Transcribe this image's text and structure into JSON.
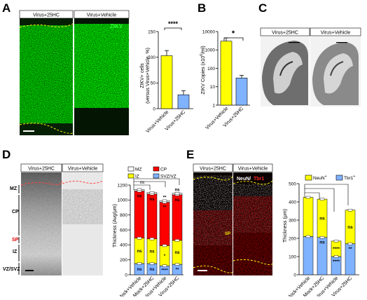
{
  "panels": {
    "A": {
      "letter": "A",
      "image_left_label": "Virus+25HC",
      "image_right_label": "Virus+Vehicle",
      "stain_label": "ZIKV",
      "chart_title_lines": [
        "ZIKV+ cells",
        "(versus Virus+Vehicle, %)"
      ],
      "significance": "****"
    },
    "B": {
      "letter": "B",
      "significance": "*"
    },
    "C": {
      "letter": "C",
      "image_left_label": "Virus+25HC",
      "image_right_label": "Virus+Vehicle"
    },
    "D": {
      "letter": "D",
      "image_left_label": "Virus+25HC",
      "image_right_label": "Virus+Vehicle",
      "layer_labels": [
        "MZ",
        "CP",
        "SP",
        "IZ",
        "VZ/SVZ"
      ],
      "bar_labels": [
        {
          "cp": "ns",
          "iz": "ns",
          "svz": "ns"
        },
        {
          "cp": "ns",
          "iz": "ns",
          "svz": "ns"
        },
        {
          "top": "**",
          "cp": "**",
          "iz": "*",
          "svz": "****"
        },
        {
          "top": "ns",
          "cp": "ns",
          "iz": "ns",
          "svz": "**"
        }
      ],
      "top_sig": "ns"
    },
    "E": {
      "letter": "E",
      "image_left_label": "Virus+25HC",
      "image_right_label": "Virus+Vehicle",
      "stain_label_1": "NeuN/",
      "stain_label_2": "Tbr1",
      "sp_label": "SP",
      "bar_labels": [
        {
          "neun": "",
          "tbr1": ""
        },
        {
          "neun": "ns",
          "tbr1": "ns"
        },
        {
          "neun": "****",
          "tbr1": "****"
        },
        {
          "neun": "ns",
          "tbr1": "**"
        }
      ]
    }
  },
  "chart_data": [
    {
      "id": "A",
      "type": "bar",
      "categories": [
        "Virus+Vehicle",
        "Virus+25HC"
      ],
      "values": [
        103,
        27
      ],
      "errors": [
        10,
        8
      ],
      "colors": [
        "#ffff00",
        "#7fb2ff"
      ],
      "ylabel": "ZIKV+ cells (versus Virus+Vehicle, %)",
      "ylim": [
        0,
        150
      ],
      "yticks": [
        0,
        50,
        100,
        150
      ]
    },
    {
      "id": "B",
      "type": "bar",
      "categories": [
        "Virus+Vehicle",
        "Virus+25HC"
      ],
      "values": [
        3000,
        30
      ],
      "errors": [
        1500,
        12
      ],
      "colors": [
        "#ffff00",
        "#7fb2ff"
      ],
      "ylabel": "ZIKV Copies (x10^6/ml)",
      "yscale": "log",
      "ylim": [
        1,
        10000
      ],
      "ytick_labels": [
        "1",
        "10",
        "100",
        "1000",
        "10000"
      ]
    },
    {
      "id": "D",
      "type": "bar",
      "stacked": true,
      "categories": [
        "Mock+Vehicle",
        "Mock+25HC",
        "Virus+Vehicle",
        "Virus+25HC"
      ],
      "ylabel": "Thickness (Avg/μm)",
      "ylim": [
        0,
        1200
      ],
      "yticks": [
        0,
        200,
        400,
        600,
        800,
        1000,
        1200
      ],
      "series": [
        {
          "name": "SVZ/VZ",
          "color": "#7fb2ff",
          "values": [
            150,
            150,
            120,
            140
          ]
        },
        {
          "name": "IZ",
          "color": "#ffff00",
          "values": [
            340,
            330,
            270,
            320
          ]
        },
        {
          "name": "CP",
          "color": "#ff0000",
          "values": [
            630,
            600,
            580,
            610
          ]
        },
        {
          "name": "MZ",
          "color": "#ffffff",
          "values": [
            20,
            20,
            20,
            20
          ]
        }
      ],
      "legend": [
        "MZ",
        "CP",
        "IZ",
        "SVZ/VZ"
      ]
    },
    {
      "id": "E",
      "type": "bar",
      "stacked": true,
      "categories": [
        "Mock+Vehicle",
        "Mock+25HC",
        "Virus+Vehicle",
        "Virus+25HC"
      ],
      "ylabel": "Thickness (μm)",
      "ylim": [
        0,
        500
      ],
      "yticks": [
        0,
        100,
        200,
        300,
        400,
        500
      ],
      "series": [
        {
          "name": "Tbr1+",
          "color": "#7fb2ff",
          "values": [
            210,
            205,
            100,
            170
          ]
        },
        {
          "name": "NeuN+",
          "color": "#ffff00",
          "values": [
            215,
            210,
            85,
            185
          ]
        }
      ],
      "legend": [
        "NeuN+",
        "Tbr1+"
      ]
    }
  ]
}
